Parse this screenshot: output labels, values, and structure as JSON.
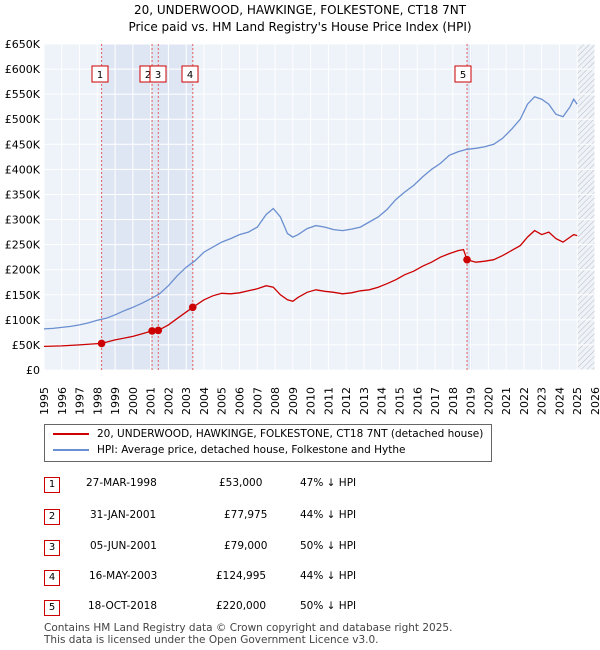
{
  "chart_data": {
    "type": "line",
    "title": "20, UNDERWOOD, HAWKINGE, FOLKESTONE, CT18 7NT",
    "subtitle": "Price paid vs. HM Land Registry's House Price Index (HPI)",
    "xlim": [
      1995,
      2026
    ],
    "ylim": [
      0,
      650000
    ],
    "x_ticks": [
      1995,
      1996,
      1997,
      1998,
      1999,
      2000,
      2001,
      2002,
      2003,
      2004,
      2005,
      2006,
      2007,
      2008,
      2009,
      2010,
      2011,
      2012,
      2013,
      2014,
      2015,
      2016,
      2017,
      2018,
      2019,
      2020,
      2021,
      2022,
      2023,
      2024,
      2025,
      2026
    ],
    "y_ticks": [
      {
        "value": 0,
        "label": "£0"
      },
      {
        "value": 50000,
        "label": "£50K"
      },
      {
        "value": 100000,
        "label": "£100K"
      },
      {
        "value": 150000,
        "label": "£150K"
      },
      {
        "value": 200000,
        "label": "£200K"
      },
      {
        "value": 250000,
        "label": "£250K"
      },
      {
        "value": 300000,
        "label": "£300K"
      },
      {
        "value": 350000,
        "label": "£350K"
      },
      {
        "value": 400000,
        "label": "£400K"
      },
      {
        "value": 450000,
        "label": "£450K"
      },
      {
        "value": 500000,
        "label": "£500K"
      },
      {
        "value": 550000,
        "label": "£550K"
      },
      {
        "value": 600000,
        "label": "£600K"
      },
      {
        "value": 650000,
        "label": "£650K"
      }
    ],
    "shaded_x_ranges": [
      [
        1998.24,
        2003.37
      ],
      [
        2018.8,
        2019.05
      ]
    ],
    "hatched_from_x": 2025.0,
    "series": [
      {
        "name": "20, UNDERWOOD, HAWKINGE, FOLKESTONE, CT18 7NT (detached house)",
        "color": "#cc0000",
        "x": [
          1995.0,
          1996.0,
          1997.0,
          1997.8,
          1998.24,
          1999.0,
          2000.0,
          2000.5,
          2001.08,
          2001.43,
          2002.0,
          2002.7,
          2003.37,
          2004.0,
          2004.5,
          2005.0,
          2005.5,
          2006.0,
          2006.5,
          2007.0,
          2007.5,
          2007.9,
          2008.3,
          2008.7,
          2009.0,
          2009.3,
          2009.8,
          2010.3,
          2010.8,
          2011.3,
          2011.8,
          2012.3,
          2012.8,
          2013.3,
          2013.8,
          2014.3,
          2014.8,
          2015.3,
          2015.8,
          2016.3,
          2016.8,
          2017.3,
          2017.8,
          2018.3,
          2018.6,
          2018.8,
          2019.0,
          2019.3,
          2019.8,
          2020.3,
          2020.8,
          2021.3,
          2021.8,
          2022.2,
          2022.6,
          2023.0,
          2023.4,
          2023.8,
          2024.2,
          2024.6,
          2024.8,
          2025.0
        ],
        "y": [
          47000,
          48000,
          50000,
          52000,
          53000,
          60000,
          67000,
          72000,
          77975,
          79000,
          90000,
          108000,
          124995,
          140000,
          148000,
          153000,
          152000,
          154000,
          158000,
          162000,
          168000,
          165000,
          150000,
          140000,
          137000,
          145000,
          155000,
          160000,
          157000,
          155000,
          152000,
          154000,
          158000,
          160000,
          165000,
          172000,
          180000,
          190000,
          197000,
          207000,
          215000,
          225000,
          232000,
          238000,
          240000,
          220000,
          218000,
          215000,
          217000,
          220000,
          228000,
          238000,
          248000,
          265000,
          278000,
          270000,
          275000,
          262000,
          255000,
          265000,
          270000,
          268000
        ]
      },
      {
        "name": "HPI: Average price, detached house, Folkestone and Hythe",
        "color": "#6a8fd0",
        "x": [
          1995.0,
          1995.5,
          1996.0,
          1996.5,
          1997.0,
          1997.5,
          1998.0,
          1998.5,
          1999.0,
          1999.5,
          2000.0,
          2000.5,
          2001.0,
          2001.5,
          2002.0,
          2002.5,
          2003.0,
          2003.5,
          2004.0,
          2004.5,
          2005.0,
          2005.5,
          2006.0,
          2006.5,
          2007.0,
          2007.5,
          2007.9,
          2008.3,
          2008.7,
          2009.0,
          2009.3,
          2009.8,
          2010.3,
          2010.8,
          2011.3,
          2011.8,
          2012.3,
          2012.8,
          2013.3,
          2013.8,
          2014.3,
          2014.8,
          2015.3,
          2015.8,
          2016.3,
          2016.8,
          2017.3,
          2017.8,
          2018.3,
          2018.8,
          2019.3,
          2019.8,
          2020.3,
          2020.8,
          2021.3,
          2021.8,
          2022.2,
          2022.6,
          2023.0,
          2023.4,
          2023.8,
          2024.2,
          2024.6,
          2024.8,
          2025.0
        ],
        "y": [
          82000,
          83000,
          85000,
          87000,
          90000,
          94000,
          99000,
          103000,
          110000,
          118000,
          125000,
          133000,
          142000,
          152000,
          168000,
          188000,
          205000,
          218000,
          235000,
          245000,
          255000,
          262000,
          270000,
          275000,
          285000,
          310000,
          322000,
          305000,
          272000,
          265000,
          270000,
          282000,
          288000,
          285000,
          280000,
          278000,
          281000,
          285000,
          295000,
          305000,
          320000,
          340000,
          355000,
          368000,
          385000,
          400000,
          412000,
          428000,
          435000,
          440000,
          442000,
          445000,
          450000,
          462000,
          480000,
          500000,
          530000,
          545000,
          540000,
          530000,
          510000,
          505000,
          525000,
          540000,
          530000
        ]
      }
    ],
    "purchases": [
      {
        "num": "1",
        "x": 1998.24,
        "y": 53000
      },
      {
        "num": "2",
        "x": 2001.08,
        "y": 77975
      },
      {
        "num": "3",
        "x": 2001.43,
        "y": 79000
      },
      {
        "num": "4",
        "x": 2003.37,
        "y": 124995
      },
      {
        "num": "5",
        "x": 2018.8,
        "y": 220000
      }
    ]
  },
  "legend": {
    "red_label": "20, UNDERWOOD, HAWKINGE, FOLKESTONE, CT18 7NT (detached house)",
    "blue_label": "HPI: Average price, detached house, Folkestone and Hythe"
  },
  "transactions": [
    {
      "num": "1",
      "date": "27-MAR-1998",
      "price": "£53,000",
      "hpi": "47% ↓ HPI"
    },
    {
      "num": "2",
      "date": "31-JAN-2001",
      "price": "£77,975",
      "hpi": "44% ↓ HPI"
    },
    {
      "num": "3",
      "date": "05-JUN-2001",
      "price": "£79,000",
      "hpi": "50% ↓ HPI"
    },
    {
      "num": "4",
      "date": "16-MAY-2003",
      "price": "£124,995",
      "hpi": "44% ↓ HPI"
    },
    {
      "num": "5",
      "date": "18-OCT-2018",
      "price": "£220,000",
      "hpi": "50% ↓ HPI"
    }
  ],
  "footer": {
    "line1": "Contains HM Land Registry data © Crown copyright and database right 2025.",
    "line2": "This data is licensed under the Open Government Licence v3.0."
  }
}
